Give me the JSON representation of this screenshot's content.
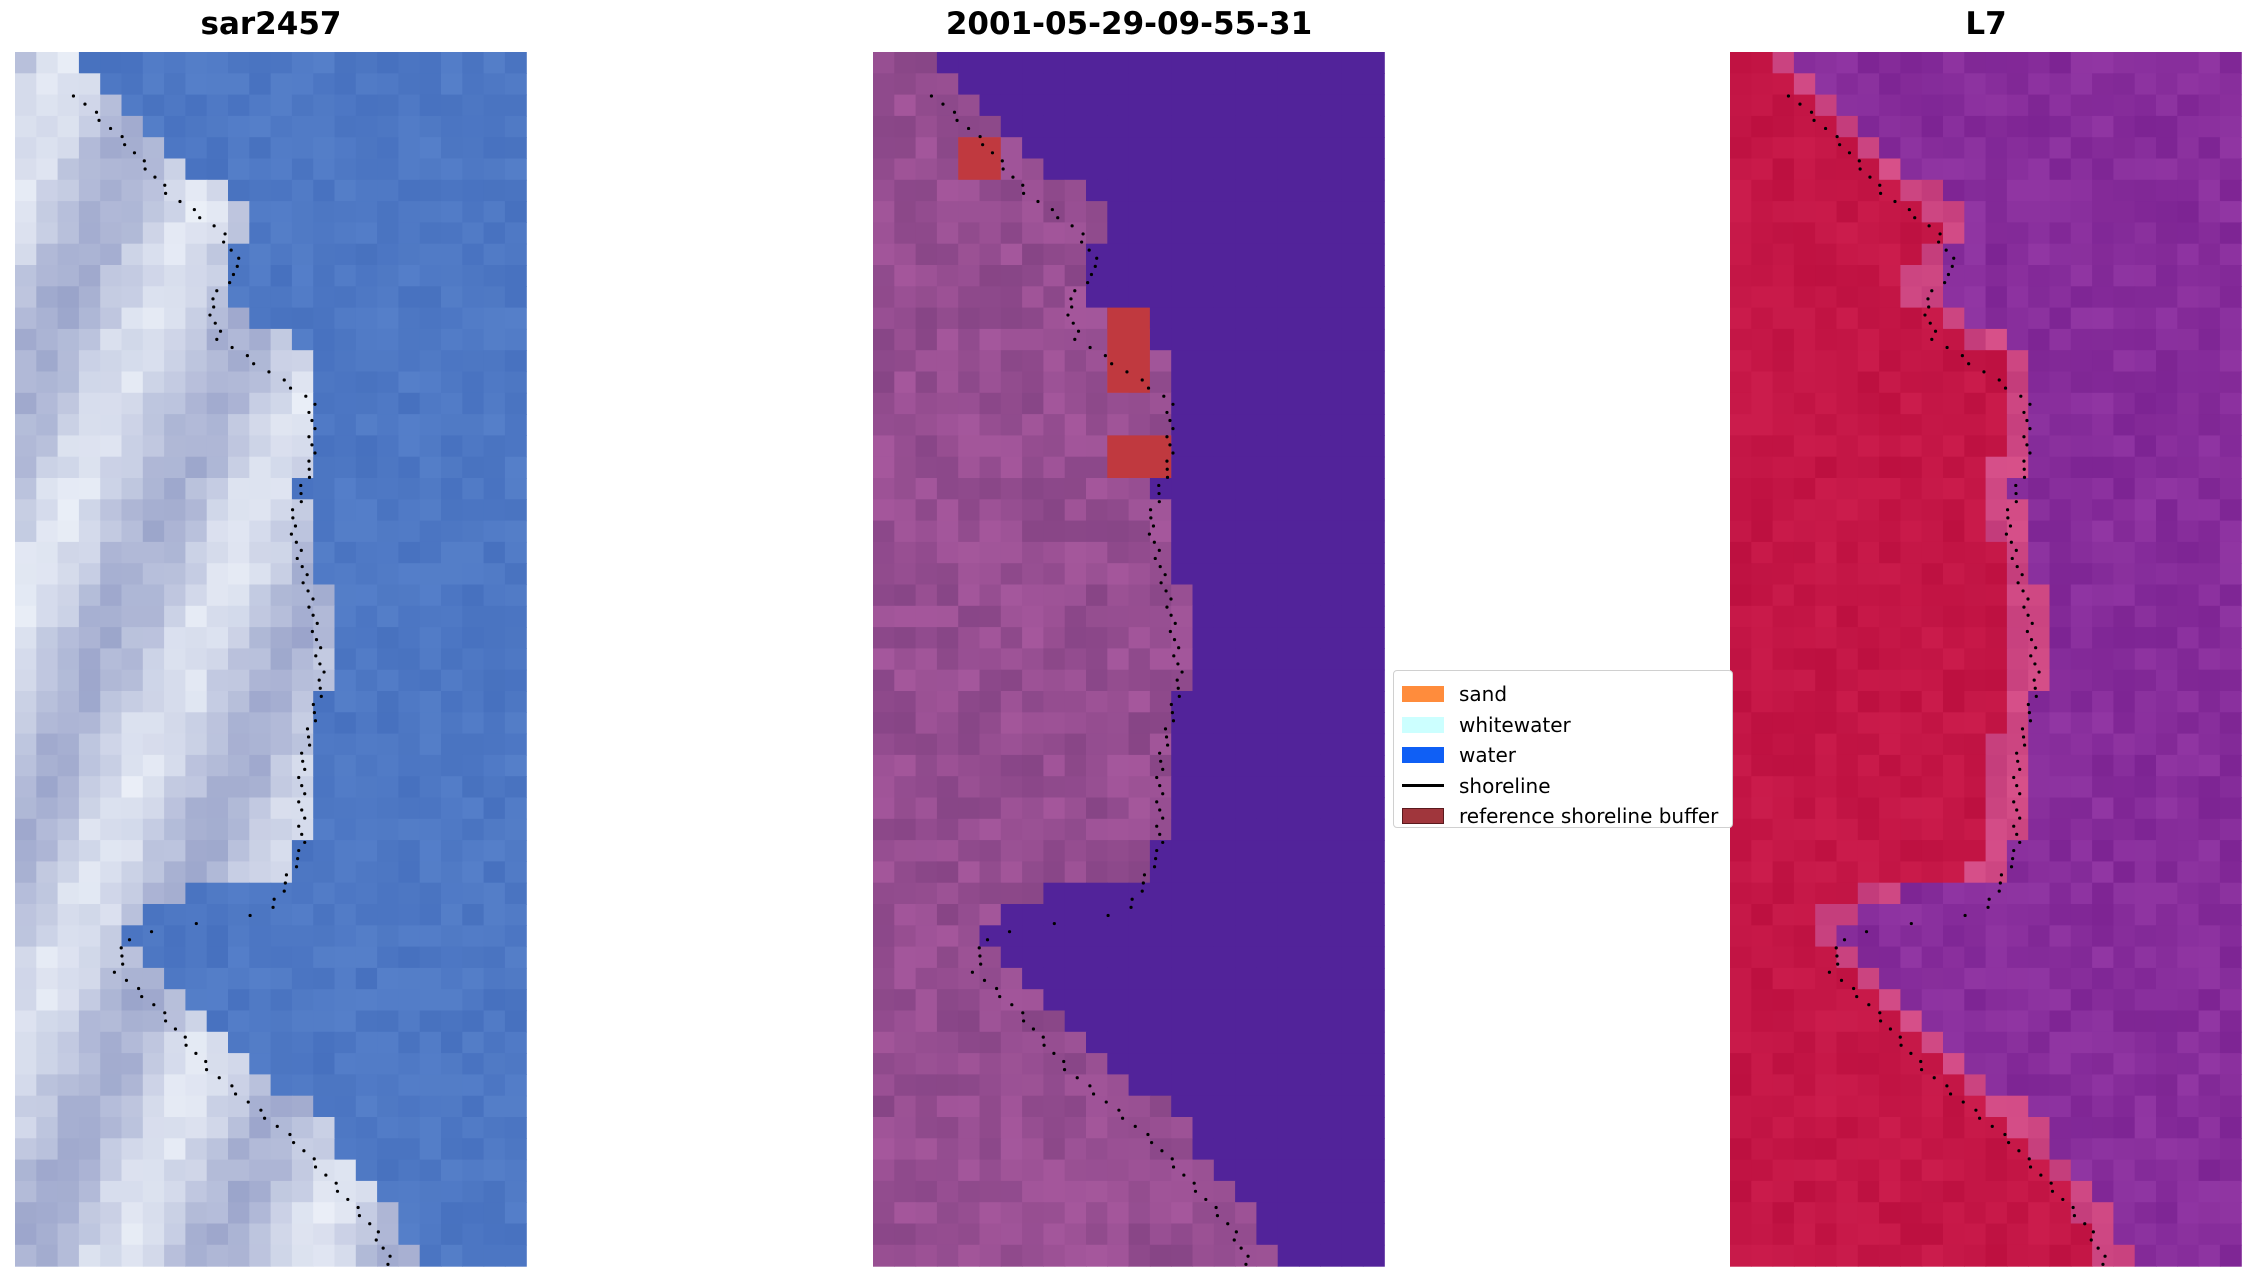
{
  "panels": [
    {
      "title": "sar2457",
      "palette": "rgb"
    },
    {
      "title": "2001-05-29-09-55-31",
      "palette": "classified"
    },
    {
      "title": "L7",
      "palette": "index"
    }
  ],
  "legend": {
    "items": [
      {
        "label": "sand",
        "color": "#ff8c3c",
        "kind": "patch"
      },
      {
        "label": "whitewater",
        "color": "#ccffff",
        "kind": "patch"
      },
      {
        "label": "water",
        "color": "#0f5ff5",
        "kind": "patch"
      },
      {
        "label": "shoreline",
        "color": "#000000",
        "kind": "line"
      },
      {
        "label": "reference shoreline buffer",
        "color": "#a0363c",
        "kind": "patch"
      }
    ]
  },
  "colors": {
    "water_blue": "#4f78c4",
    "class_water": "#52239a",
    "class_land": "#9b4f92",
    "index_land": "#c41c48",
    "index_water": "#8a2d9a",
    "buffer_red": "#c0393f"
  }
}
